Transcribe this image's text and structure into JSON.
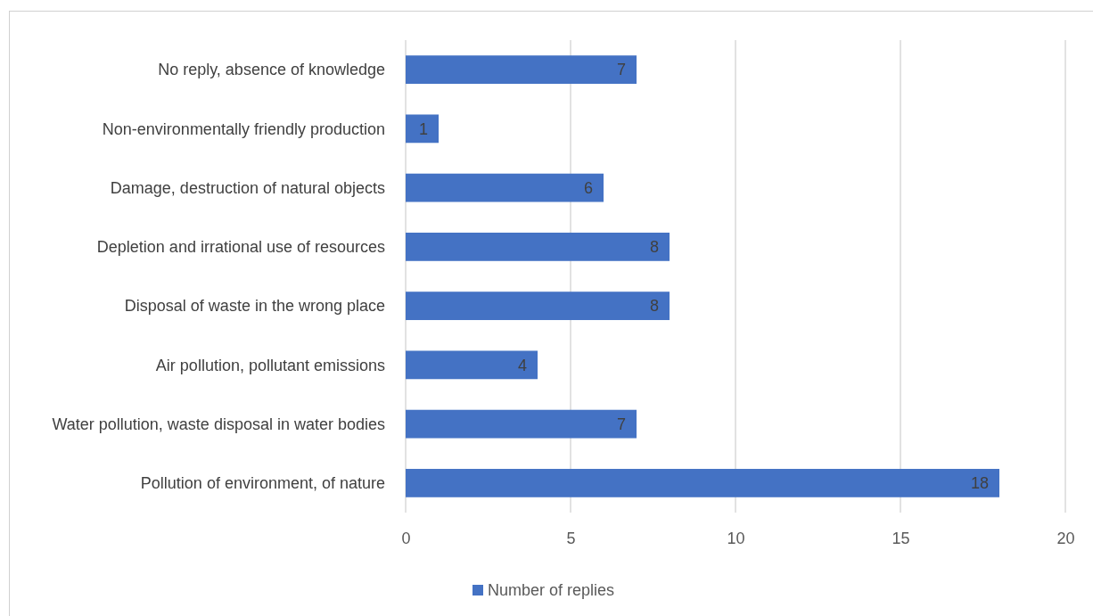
{
  "chart_data": {
    "type": "bar",
    "orientation": "horizontal",
    "categories": [
      "No reply, absence of knowledge",
      "Non-environmentally friendly production",
      "Damage, destruction of natural objects",
      "Depletion and irrational use of resources",
      "Disposal of waste in the wrong place",
      "Air pollution, pollutant emissions",
      "Water pollution, waste disposal in water bodies",
      "Pollution of environment, of nature"
    ],
    "series": [
      {
        "name": "Number of replies",
        "color": "#4472c4",
        "values": [
          7,
          1,
          6,
          8,
          8,
          4,
          7,
          18
        ]
      }
    ],
    "xlim": [
      0,
      20
    ],
    "xticks": [
      0,
      5,
      10,
      15,
      20
    ],
    "grid": "x",
    "data_labels": true,
    "legend": "bottom"
  }
}
